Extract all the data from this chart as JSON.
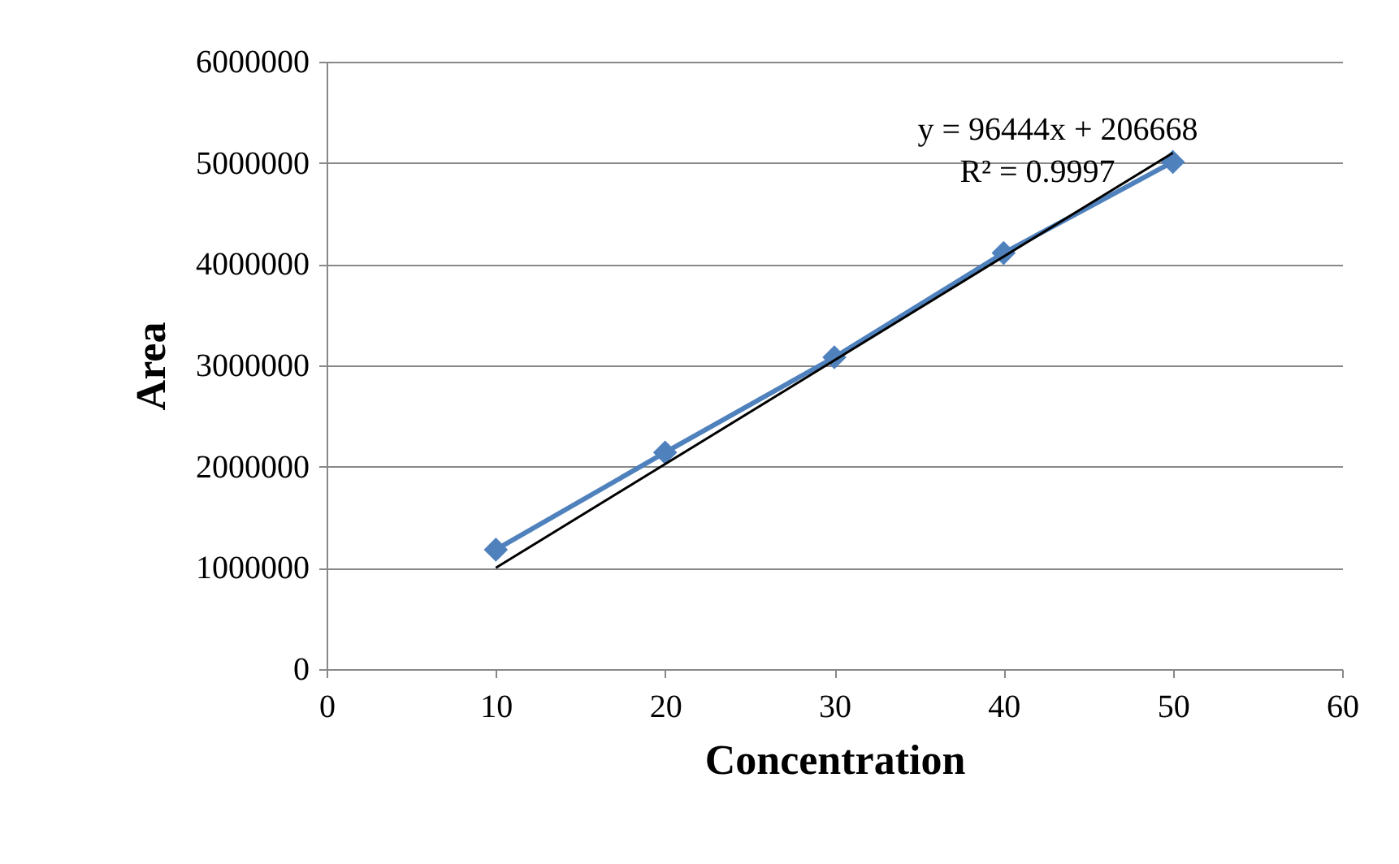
{
  "chart_data": {
    "type": "line",
    "xlabel": "Concentration",
    "ylabel": "Area",
    "annotations": [
      "y = 96444x + 206668",
      "R² = 0.9997"
    ],
    "xlim": [
      0,
      60
    ],
    "xticks": [
      0,
      10,
      20,
      30,
      40,
      50,
      60
    ],
    "ylim": [
      0,
      6000000
    ],
    "yticks": [
      0,
      1000000,
      2000000,
      3000000,
      4000000,
      5000000,
      6000000
    ],
    "grid": "y",
    "marker": "diamond",
    "series": [
      {
        "color": "#4f81bd",
        "x": [
          10,
          20,
          30,
          40,
          50
        ],
        "values": [
          1180000,
          2140000,
          3080000,
          4110000,
          5010000
        ]
      },
      {
        "type": "line",
        "color": "#000000",
        "marker": "none",
        "x": [
          10,
          50
        ],
        "values": [
          1000000,
          5100000
        ]
      }
    ]
  }
}
